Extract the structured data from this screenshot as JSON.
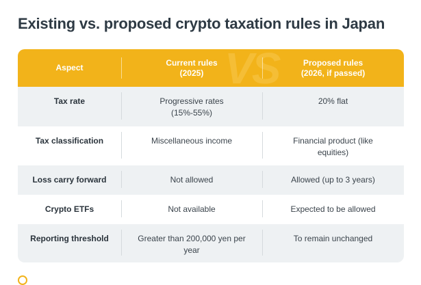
{
  "title": "Existing vs. proposed crypto taxation rules in Japan",
  "watermark": "VS",
  "colors": {
    "header": "#f2b31a",
    "row_shade": "#eef1f3",
    "title_text": "#2e3a44"
  },
  "table": {
    "headers": {
      "aspect": "Aspect",
      "current_line1": "Current rules",
      "current_line2": "(2025)",
      "proposed_line1": "Proposed rules",
      "proposed_line2": "(2026, if passed)"
    },
    "rows": [
      {
        "aspect": "Tax rate",
        "current": "Progressive rates (15%-55%)",
        "proposed": "20% flat"
      },
      {
        "aspect": "Tax classification",
        "current": "Miscellaneous income",
        "proposed": "Financial product (like equities)"
      },
      {
        "aspect": "Loss carry forward",
        "current": "Not allowed",
        "proposed": "Allowed (up to 3 years)"
      },
      {
        "aspect": "Crypto ETFs",
        "current": "Not available",
        "proposed": "Expected to be allowed"
      },
      {
        "aspect": "Reporting threshold",
        "current": "Greater than 200,000 yen per year",
        "proposed": "To remain unchanged"
      }
    ]
  }
}
